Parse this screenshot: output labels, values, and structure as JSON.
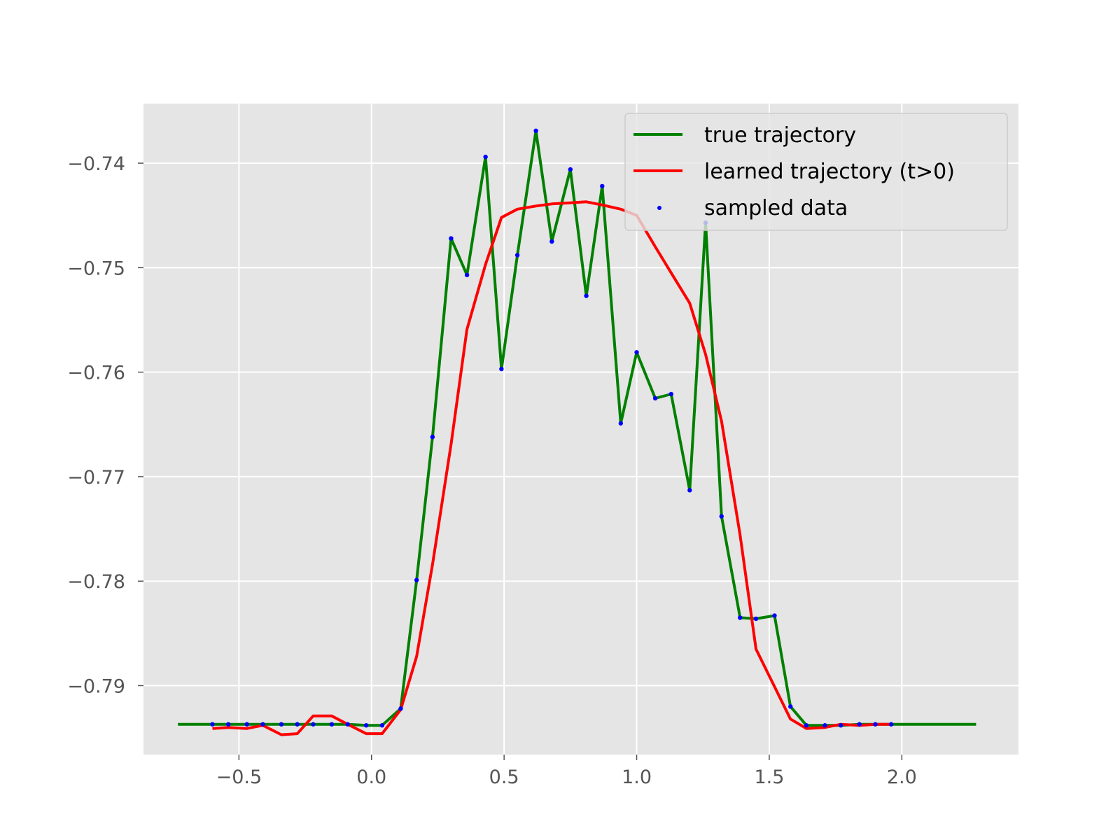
{
  "chart_data": {
    "type": "line",
    "title": "",
    "xlabel": "",
    "ylabel": "",
    "xlim": [
      -0.86,
      2.44
    ],
    "ylim": [
      -0.7966,
      -0.7343
    ],
    "xticks": [
      -0.5,
      0.0,
      0.5,
      1.0,
      1.5,
      2.0
    ],
    "xtick_labels": [
      "−0.5",
      "0.0",
      "0.5",
      "1.0",
      "1.5",
      "2.0"
    ],
    "yticks": [
      -0.79,
      -0.78,
      -0.77,
      -0.76,
      -0.75,
      -0.74
    ],
    "ytick_labels": [
      "−0.79",
      "−0.78",
      "−0.77",
      "−0.76",
      "−0.75",
      "−0.74"
    ],
    "grid": true,
    "legend_position": "top-right",
    "colors": {
      "background": "#e5e5e5",
      "grid": "#ffffff",
      "true": "#008000",
      "learned": "#ff0000",
      "sampled": "#0000ff"
    },
    "series": [
      {
        "name": "true trajectory",
        "kind": "line",
        "x": [
          -0.73,
          -0.6,
          -0.54,
          -0.47,
          -0.41,
          -0.34,
          -0.28,
          -0.22,
          -0.15,
          -0.09,
          -0.02,
          0.04,
          0.11,
          0.17,
          0.23,
          0.3,
          0.36,
          0.43,
          0.49,
          0.55,
          0.62,
          0.68,
          0.75,
          0.81,
          0.87,
          0.94,
          1.0,
          1.07,
          1.13,
          1.2,
          1.26,
          1.32,
          1.39,
          1.45,
          1.52,
          1.58,
          1.64,
          1.71,
          1.77,
          1.84,
          1.9,
          1.96,
          2.28
        ],
        "y": [
          -0.7937,
          -0.7937,
          -0.7937,
          -0.7937,
          -0.7937,
          -0.7937,
          -0.7937,
          -0.7937,
          -0.7937,
          -0.7937,
          -0.7938,
          -0.7938,
          -0.7922,
          -0.7799,
          -0.7662,
          -0.7472,
          -0.7507,
          -0.7394,
          -0.7597,
          -0.7488,
          -0.7369,
          -0.7475,
          -0.7406,
          -0.7527,
          -0.7422,
          -0.7649,
          -0.7581,
          -0.7625,
          -0.7621,
          -0.7713,
          -0.7457,
          -0.7738,
          -0.7835,
          -0.7836,
          -0.7833,
          -0.792,
          -0.7938,
          -0.7938,
          -0.7938,
          -0.7937,
          -0.7937,
          -0.7937,
          -0.7937
        ]
      },
      {
        "name": "learned trajectory (t>0)",
        "kind": "line",
        "x": [
          -0.6,
          -0.54,
          -0.47,
          -0.41,
          -0.34,
          -0.28,
          -0.22,
          -0.15,
          -0.09,
          -0.02,
          0.04,
          0.11,
          0.17,
          0.23,
          0.3,
          0.36,
          0.43,
          0.49,
          0.55,
          0.62,
          0.68,
          0.75,
          0.81,
          0.87,
          0.94,
          1.0,
          1.07,
          1.13,
          1.2,
          1.26,
          1.32,
          1.39,
          1.45,
          1.52,
          1.58,
          1.64,
          1.71,
          1.77,
          1.84,
          1.9,
          1.96
        ],
        "y": [
          -0.7941,
          -0.794,
          -0.7941,
          -0.7938,
          -0.7947,
          -0.7946,
          -0.7929,
          -0.7929,
          -0.7937,
          -0.7946,
          -0.7946,
          -0.7923,
          -0.7872,
          -0.7784,
          -0.7669,
          -0.7559,
          -0.7497,
          -0.7452,
          -0.7444,
          -0.7441,
          -0.7439,
          -0.7438,
          -0.7437,
          -0.744,
          -0.7444,
          -0.745,
          -0.748,
          -0.7505,
          -0.7534,
          -0.7583,
          -0.7647,
          -0.7756,
          -0.7865,
          -0.7901,
          -0.7932,
          -0.7941,
          -0.794,
          -0.7937,
          -0.7938,
          -0.7937,
          -0.7937
        ]
      },
      {
        "name": "sampled data",
        "kind": "scatter",
        "x": [
          -0.6,
          -0.54,
          -0.47,
          -0.41,
          -0.34,
          -0.28,
          -0.22,
          -0.15,
          -0.09,
          -0.02,
          0.04,
          0.11,
          0.17,
          0.23,
          0.3,
          0.36,
          0.43,
          0.49,
          0.55,
          0.62,
          0.68,
          0.75,
          0.81,
          0.87,
          0.94,
          1.0,
          1.07,
          1.13,
          1.2,
          1.26,
          1.32,
          1.39,
          1.45,
          1.52,
          1.58,
          1.64,
          1.71,
          1.77,
          1.84,
          1.9,
          1.96
        ],
        "y": [
          -0.7937,
          -0.7937,
          -0.7937,
          -0.7937,
          -0.7937,
          -0.7937,
          -0.7937,
          -0.7937,
          -0.7937,
          -0.7938,
          -0.7938,
          -0.7922,
          -0.7799,
          -0.7662,
          -0.7472,
          -0.7507,
          -0.7394,
          -0.7597,
          -0.7488,
          -0.7369,
          -0.7475,
          -0.7406,
          -0.7527,
          -0.7422,
          -0.7649,
          -0.7581,
          -0.7625,
          -0.7621,
          -0.7713,
          -0.7457,
          -0.7738,
          -0.7835,
          -0.7836,
          -0.7833,
          -0.792,
          -0.7938,
          -0.7938,
          -0.7938,
          -0.7937,
          -0.7937,
          -0.7937
        ]
      }
    ]
  }
}
